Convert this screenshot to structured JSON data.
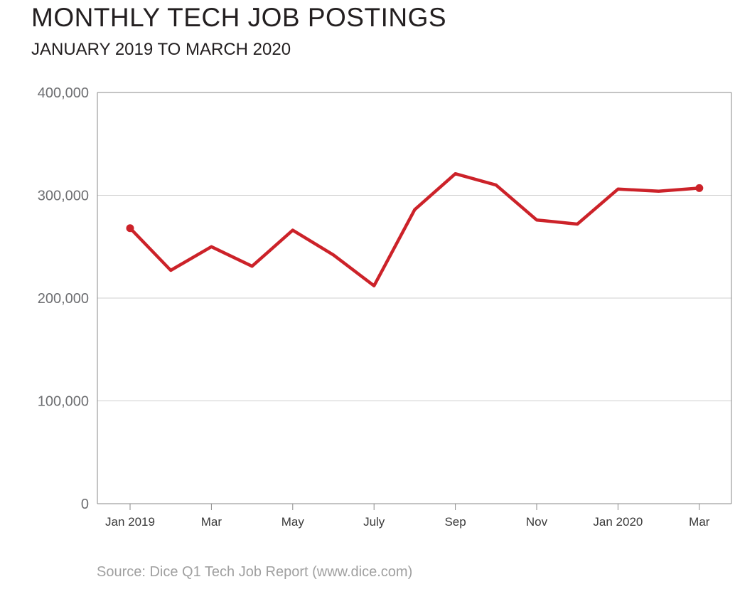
{
  "chart_data": {
    "type": "line",
    "title": "MONTHLY TECH JOB POSTINGS",
    "subtitle": "JANUARY 2019 TO MARCH 2020",
    "source": "Source: Dice Q1 Tech Job Report (www.dice.com)",
    "x_tick_labels": [
      "Jan 2019",
      "Mar",
      "May",
      "July",
      "Sep",
      "Nov",
      "Jan 2020",
      "Mar"
    ],
    "x_tick_positions": [
      0,
      2,
      4,
      6,
      8,
      10,
      12,
      14
    ],
    "y_tick_values": [
      0,
      100000,
      200000,
      300000,
      400000
    ],
    "y_tick_labels": [
      "0",
      "100,000",
      "200,000",
      "300,000",
      "400,000"
    ],
    "ylim": [
      0,
      400000
    ],
    "grid": true,
    "series": [
      {
        "color": "#cc2229",
        "x": [
          "2019-01",
          "2019-02",
          "2019-03",
          "2019-04",
          "2019-05",
          "2019-06",
          "2019-07",
          "2019-08",
          "2019-09",
          "2019-10",
          "2019-11",
          "2019-12",
          "2020-01",
          "2020-02",
          "2020-03"
        ],
        "values": [
          268000,
          227000,
          250000,
          231000,
          266000,
          242000,
          212000,
          286000,
          321000,
          310000,
          276000,
          272000,
          306000,
          304000,
          307000
        ]
      }
    ]
  }
}
